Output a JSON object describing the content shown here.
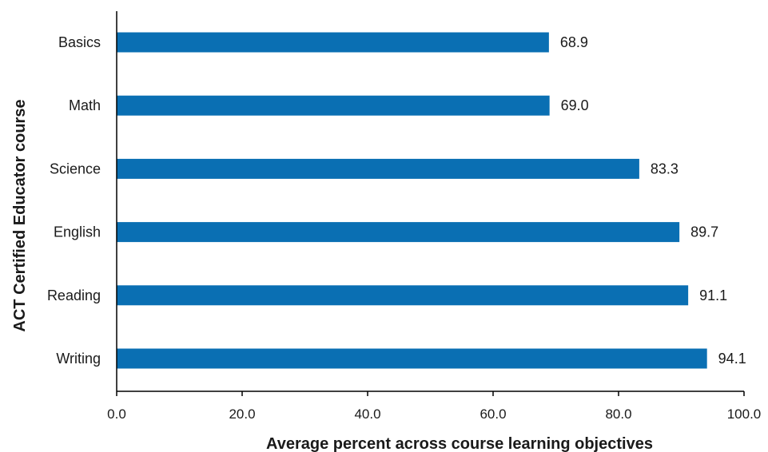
{
  "chart_data": {
    "type": "bar",
    "orientation": "horizontal",
    "categories": [
      "Basics",
      "Math",
      "Science",
      "English",
      "Reading",
      "Writing"
    ],
    "values": [
      68.9,
      69.0,
      83.3,
      89.7,
      91.1,
      94.1
    ],
    "data_labels": [
      "68.9",
      "69.0",
      "83.3",
      "89.7",
      "91.1",
      "94.1"
    ],
    "title": "",
    "xlabel": "Average percent across course learning objectives",
    "ylabel": "ACT Certified Educator course",
    "xlim": [
      0,
      100
    ],
    "xticks": [
      0,
      20,
      40,
      60,
      80,
      100
    ],
    "xtick_labels": [
      "0.0",
      "20.0",
      "40.0",
      "60.0",
      "80.0",
      "100.0"
    ],
    "grid": false,
    "legend": "none",
    "bar_color": "#0a6fb3",
    "axis_color": "#000000"
  }
}
